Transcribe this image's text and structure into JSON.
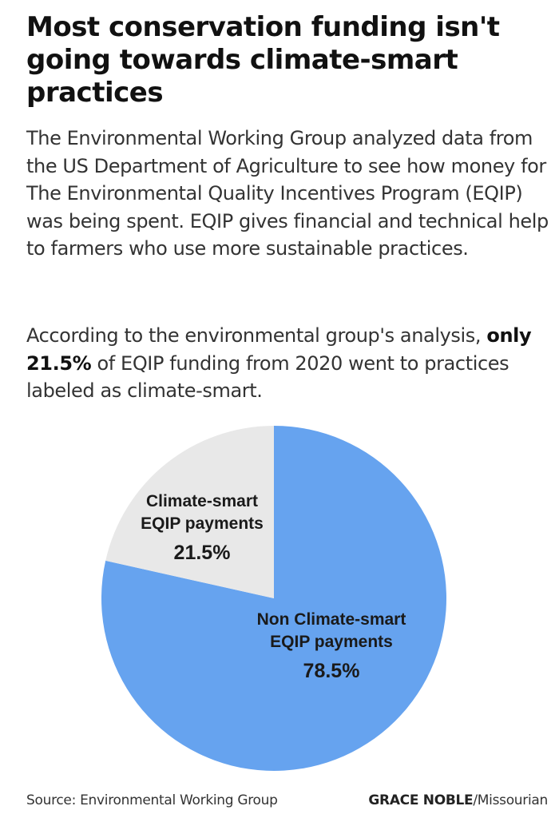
{
  "headline": "Most conservation funding isn't going towards climate-smart practices",
  "intro": "The Environmental Working Group analyzed data from the US Department of Agriculture to see how money for The Environmental Quality Incentives Program (EQIP) was being spent. EQIP gives financial and technical help to farmers who use more sustainable practices.",
  "analysis": {
    "before": "According to the environmental group's analysis, ",
    "highlight": "only 21.5%",
    "after": " of EQIP funding from 2020 went to practices labeled as climate-smart."
  },
  "chart_data": {
    "type": "pie",
    "title": "",
    "slices": [
      {
        "label_lines": [
          "Climate-smart",
          "EQIP payments"
        ],
        "value": 21.5,
        "value_label": "21.5%",
        "color": "#e8e8e8"
      },
      {
        "label_lines": [
          "Non Climate-smart",
          "EQIP payments"
        ],
        "value": 78.5,
        "value_label": "78.5%",
        "color": "#66a3ef"
      }
    ],
    "start": "12 o'clock",
    "direction": "counterclockwise for first slice"
  },
  "footer": {
    "source": "Source: Environmental Working Group",
    "author": "GRACE NOBLE",
    "outlet": "/Missourian"
  }
}
